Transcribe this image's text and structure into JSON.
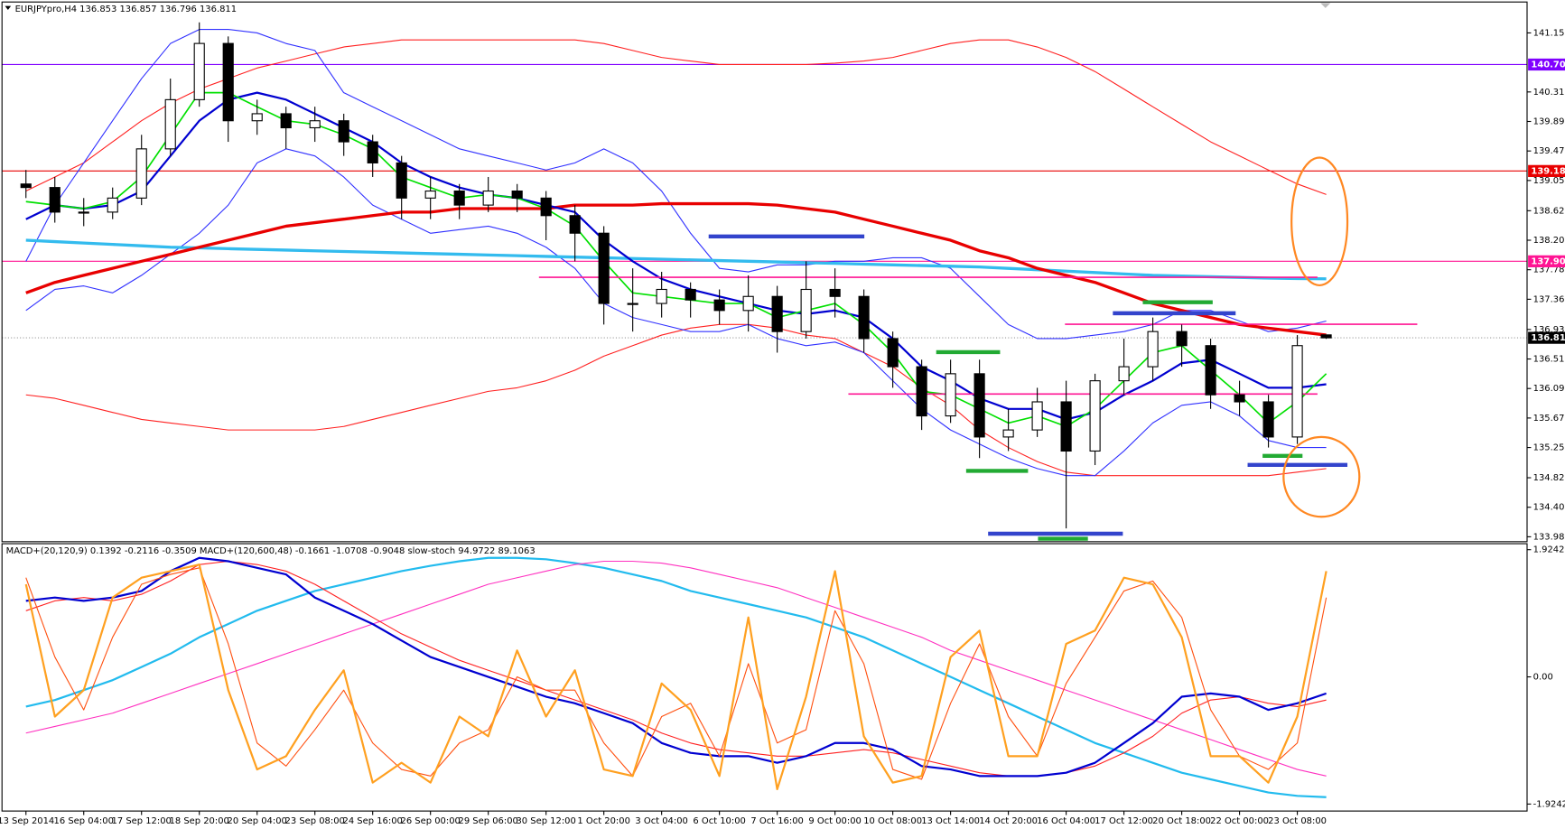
{
  "chart_data": [
    {
      "type": "candlestick",
      "title": "EURJPYpro,H4  136.853 136.857 136.796 136.811",
      "categories": [
        "13 Sep 2014",
        null,
        "16 Sep 04:00",
        null,
        "17 Sep 12:00",
        null,
        "18 Sep 20:00",
        null,
        "20 Sep 04:00",
        null,
        "23 Sep 08:00",
        null,
        "24 Sep 16:00",
        null,
        "26 Sep 00:00",
        null,
        "29 Sep 06:00",
        null,
        "30 Sep 12:00",
        null,
        "1 Oct 20:00",
        null,
        "3 Oct 04:00",
        null,
        "6 Oct 10:00",
        null,
        "7 Oct 16:00",
        null,
        "9 Oct 00:00",
        null,
        "10 Oct 08:00",
        null,
        "13 Oct 14:00",
        null,
        "14 Oct 20:00",
        null,
        "16 Oct 04:00",
        null,
        "17 Oct 12:00",
        null,
        "20 Oct 18:00",
        null,
        "22 Oct 00:00",
        null,
        "23 Oct 08:00",
        null
      ],
      "open": [
        139.0,
        138.95,
        138.6,
        138.6,
        138.8,
        139.5,
        140.2,
        141.0,
        139.9,
        140.0,
        139.8,
        139.9,
        139.6,
        139.3,
        138.8,
        138.9,
        138.7,
        138.9,
        138.8,
        138.55,
        138.3,
        137.3,
        137.3,
        137.5,
        137.35,
        137.2,
        137.4,
        136.9,
        137.5,
        137.4,
        136.8,
        136.4,
        135.7,
        136.3,
        135.4,
        135.5,
        135.9,
        135.2,
        136.2,
        136.4,
        136.9,
        136.7,
        136.0,
        135.9,
        135.4,
        136.853
      ],
      "high": [
        139.2,
        139.1,
        138.8,
        138.95,
        139.7,
        140.5,
        141.3,
        141.1,
        140.2,
        140.1,
        140.1,
        140.0,
        139.7,
        139.4,
        139.1,
        139.0,
        139.1,
        139.0,
        138.9,
        138.7,
        138.4,
        137.8,
        137.75,
        137.6,
        137.5,
        137.7,
        137.55,
        137.9,
        137.8,
        137.5,
        136.9,
        136.5,
        136.5,
        136.5,
        135.8,
        136.1,
        136.2,
        136.3,
        136.8,
        137.1,
        137.0,
        136.8,
        136.2,
        136.0,
        136.85,
        136.857
      ],
      "low": [
        138.8,
        138.45,
        138.4,
        138.5,
        138.7,
        139.4,
        140.1,
        139.6,
        139.7,
        139.5,
        139.6,
        139.4,
        139.1,
        138.5,
        138.5,
        138.5,
        138.6,
        138.6,
        138.2,
        137.9,
        137.0,
        136.9,
        137.1,
        137.1,
        137.0,
        136.9,
        136.6,
        136.8,
        137.1,
        136.6,
        136.1,
        135.5,
        135.6,
        135.1,
        135.2,
        135.4,
        134.1,
        135.0,
        136.0,
        136.2,
        136.4,
        135.8,
        135.7,
        135.25,
        135.3,
        136.796
      ],
      "close": [
        138.95,
        138.6,
        138.6,
        138.8,
        139.5,
        140.2,
        141.0,
        139.9,
        140.0,
        139.8,
        139.9,
        139.6,
        139.3,
        138.8,
        138.9,
        138.7,
        138.9,
        138.8,
        138.55,
        138.3,
        137.3,
        137.3,
        137.5,
        137.35,
        137.2,
        137.4,
        136.9,
        137.5,
        137.4,
        136.8,
        136.4,
        135.7,
        136.3,
        135.4,
        135.5,
        135.9,
        135.2,
        136.2,
        136.4,
        136.9,
        136.7,
        136.0,
        135.9,
        135.4,
        136.7,
        136.811
      ],
      "series": [
        {
          "color": "#ff2020",
          "values": [
            138.9,
            139.1,
            139.3,
            139.6,
            139.9,
            140.15,
            140.35,
            140.5,
            140.65,
            140.75,
            140.85,
            140.95,
            141.0,
            141.05,
            141.05,
            141.05,
            141.05,
            141.05,
            141.05,
            141.05,
            141.0,
            140.9,
            140.8,
            140.75,
            140.7,
            140.7,
            140.7,
            140.7,
            140.72,
            140.75,
            140.8,
            140.9,
            141.0,
            141.05,
            141.05,
            140.95,
            140.8,
            140.6,
            140.35,
            140.1,
            139.85,
            139.6,
            139.4,
            139.2,
            139.0,
            138.85
          ]
        },
        {
          "color": "#ff2020",
          "values": [
            136.0,
            135.95,
            135.85,
            135.75,
            135.65,
            135.6,
            135.55,
            135.5,
            135.5,
            135.5,
            135.5,
            135.55,
            135.65,
            135.75,
            135.85,
            135.95,
            136.05,
            136.1,
            136.2,
            136.35,
            136.55,
            136.7,
            136.85,
            136.95,
            137.0,
            137.0,
            136.95,
            136.85,
            136.8,
            136.6,
            136.4,
            136.1,
            135.85,
            135.5,
            135.25,
            135.05,
            134.9,
            134.85,
            134.85,
            134.85,
            134.85,
            134.85,
            134.85,
            134.85,
            134.9,
            134.95
          ]
        },
        {
          "color": "#3030ff",
          "values": [
            137.9,
            138.7,
            139.3,
            139.9,
            140.5,
            141.0,
            141.2,
            141.2,
            141.15,
            141.0,
            140.9,
            140.3,
            140.1,
            139.9,
            139.7,
            139.5,
            139.4,
            139.3,
            139.2,
            139.3,
            139.5,
            139.3,
            138.9,
            138.3,
            137.8,
            137.75,
            137.85,
            137.85,
            137.9,
            137.9,
            137.95,
            137.95,
            137.8,
            137.4,
            137.0,
            136.8,
            136.8,
            136.85,
            136.9,
            137.0,
            137.2,
            137.2,
            137.05,
            136.9,
            136.95,
            137.05
          ]
        },
        {
          "color": "#3030ff",
          "values": [
            137.2,
            137.5,
            137.55,
            137.45,
            137.7,
            138.0,
            138.3,
            138.7,
            139.3,
            139.5,
            139.4,
            139.1,
            138.7,
            138.5,
            138.3,
            138.35,
            138.4,
            138.3,
            138.1,
            137.8,
            137.3,
            137.1,
            137.0,
            136.9,
            136.9,
            137.0,
            136.8,
            136.7,
            136.75,
            136.6,
            136.2,
            135.8,
            135.5,
            135.3,
            135.1,
            134.95,
            134.85,
            134.85,
            135.2,
            135.6,
            135.85,
            135.9,
            135.7,
            135.35,
            135.25,
            135.25
          ]
        },
        {
          "color": "#33bbee",
          "values": [
            138.2,
            138.18,
            138.16,
            138.14,
            138.12,
            138.1,
            138.09,
            138.08,
            138.07,
            138.06,
            138.05,
            138.04,
            138.03,
            138.02,
            138.01,
            138.0,
            137.99,
            137.98,
            137.97,
            137.96,
            137.95,
            137.94,
            137.93,
            137.92,
            137.91,
            137.9,
            137.89,
            137.88,
            137.87,
            137.86,
            137.85,
            137.84,
            137.83,
            137.82,
            137.8,
            137.78,
            137.76,
            137.74,
            137.72,
            137.7,
            137.69,
            137.68,
            137.67,
            137.66,
            137.655,
            137.65
          ]
        },
        {
          "color": "#e80000",
          "values": [
            137.45,
            137.6,
            137.7,
            137.8,
            137.9,
            138.0,
            138.1,
            138.2,
            138.3,
            138.4,
            138.45,
            138.5,
            138.55,
            138.6,
            138.6,
            138.65,
            138.65,
            138.65,
            138.65,
            138.7,
            138.7,
            138.7,
            138.72,
            138.72,
            138.72,
            138.72,
            138.7,
            138.65,
            138.6,
            138.5,
            138.4,
            138.3,
            138.2,
            138.05,
            137.95,
            137.8,
            137.7,
            137.6,
            137.45,
            137.3,
            137.2,
            137.1,
            137.0,
            136.95,
            136.9,
            136.85
          ]
        },
        {
          "color": "#0000d0",
          "values": [
            138.5,
            138.7,
            138.65,
            138.7,
            138.9,
            139.4,
            139.9,
            140.2,
            140.3,
            140.2,
            140.0,
            139.8,
            139.6,
            139.3,
            139.1,
            138.95,
            138.85,
            138.8,
            138.7,
            138.6,
            138.2,
            137.9,
            137.65,
            137.5,
            137.4,
            137.3,
            137.2,
            137.15,
            137.2,
            137.1,
            136.8,
            136.4,
            136.2,
            135.95,
            135.8,
            135.8,
            135.65,
            135.75,
            136.0,
            136.2,
            136.45,
            136.5,
            136.3,
            136.1,
            136.1,
            136.15
          ]
        },
        {
          "color": "#00e000",
          "values": [
            138.75,
            138.7,
            138.65,
            138.75,
            139.1,
            139.7,
            140.3,
            140.3,
            140.1,
            139.9,
            139.85,
            139.7,
            139.5,
            139.1,
            138.95,
            138.8,
            138.85,
            138.8,
            138.65,
            138.4,
            137.9,
            137.45,
            137.4,
            137.35,
            137.3,
            137.3,
            137.1,
            137.2,
            137.3,
            137.0,
            136.6,
            136.05,
            136.0,
            135.8,
            135.6,
            135.7,
            135.55,
            135.8,
            136.2,
            136.6,
            136.7,
            136.35,
            136.0,
            135.6,
            135.9,
            136.3
          ]
        }
      ],
      "hlines": [
        {
          "value": 140.7,
          "label": "140.700",
          "color": "#8000ff"
        },
        {
          "value": 139.185,
          "label": "139.185",
          "color": "#e80000"
        },
        {
          "value": 137.9,
          "label": "137.900",
          "color": "#ff1493"
        }
      ],
      "last": 136.811,
      "ylim": [
        133.91,
        141.59
      ],
      "yticks": [
        {
          "value": 141.15,
          "label": "141.150"
        },
        {
          "value": 140.31,
          "label": "140.310"
        },
        {
          "value": 139.89,
          "label": "139.890"
        },
        {
          "value": 139.47,
          "label": "139.470"
        },
        {
          "value": 139.05,
          "label": "139.050"
        },
        {
          "value": 138.62,
          "label": "138.620"
        },
        {
          "value": 138.2,
          "label": "138.200"
        },
        {
          "value": 137.78,
          "label": "137.780"
        },
        {
          "value": 137.36,
          "label": "137.360"
        },
        {
          "value": 136.93,
          "label": "136.930"
        },
        {
          "value": 136.51,
          "label": "136.510"
        },
        {
          "value": 136.09,
          "label": "136.090"
        },
        {
          "value": 135.67,
          "label": "135.670"
        },
        {
          "value": 135.25,
          "label": "135.250"
        },
        {
          "value": 134.82,
          "label": "134.820"
        },
        {
          "value": 134.4,
          "label": "134.400"
        },
        {
          "value": 133.98,
          "label": "133.980"
        }
      ]
    },
    {
      "type": "line",
      "title": "MACD+(20,120,9) 0.1392 -0.2116 -0.3509  MACD+(120,600,48) -0.1661 -1.0708 -0.9048  slow-stoch 94.9722 89.1063",
      "series": [
        {
          "color": "#22bbee",
          "values": [
            -0.45,
            -0.35,
            -0.2,
            -0.05,
            0.15,
            0.35,
            0.6,
            0.8,
            1.0,
            1.15,
            1.3,
            1.4,
            1.5,
            1.6,
            1.68,
            1.75,
            1.8,
            1.8,
            1.78,
            1.72,
            1.65,
            1.55,
            1.45,
            1.3,
            1.2,
            1.1,
            1.0,
            0.9,
            0.75,
            0.6,
            0.4,
            0.2,
            0.0,
            -0.2,
            -0.4,
            -0.6,
            -0.8,
            -1.0,
            -1.15,
            -1.3,
            -1.45,
            -1.55,
            -1.65,
            -1.75,
            -1.8,
            -1.82
          ]
        },
        {
          "color": "#ff30c0",
          "values": [
            -0.85,
            -0.75,
            -0.65,
            -0.55,
            -0.4,
            -0.25,
            -0.1,
            0.05,
            0.2,
            0.35,
            0.5,
            0.65,
            0.8,
            0.95,
            1.1,
            1.25,
            1.4,
            1.5,
            1.6,
            1.7,
            1.75,
            1.75,
            1.72,
            1.65,
            1.55,
            1.45,
            1.35,
            1.2,
            1.05,
            0.9,
            0.75,
            0.6,
            0.4,
            0.25,
            0.1,
            -0.05,
            -0.2,
            -0.35,
            -0.5,
            -0.65,
            -0.8,
            -0.95,
            -1.1,
            -1.25,
            -1.4,
            -1.5
          ]
        },
        {
          "color": "#ff2020",
          "values": [
            1.0,
            1.15,
            1.2,
            1.15,
            1.25,
            1.45,
            1.7,
            1.75,
            1.7,
            1.6,
            1.4,
            1.15,
            0.9,
            0.65,
            0.45,
            0.25,
            0.1,
            -0.05,
            -0.2,
            -0.35,
            -0.5,
            -0.65,
            -0.85,
            -1.0,
            -1.1,
            -1.15,
            -1.2,
            -1.2,
            -1.15,
            -1.1,
            -1.15,
            -1.25,
            -1.35,
            -1.45,
            -1.5,
            -1.5,
            -1.45,
            -1.35,
            -1.15,
            -0.9,
            -0.55,
            -0.35,
            -0.3,
            -0.4,
            -0.45,
            -0.35
          ]
        },
        {
          "color": "#0000d0",
          "values": [
            1.15,
            1.2,
            1.15,
            1.2,
            1.3,
            1.6,
            1.8,
            1.75,
            1.65,
            1.55,
            1.2,
            1.0,
            0.8,
            0.55,
            0.3,
            0.15,
            0.0,
            -0.15,
            -0.3,
            -0.4,
            -0.55,
            -0.7,
            -1.0,
            -1.15,
            -1.2,
            -1.2,
            -1.3,
            -1.2,
            -1.0,
            -1.0,
            -1.1,
            -1.35,
            -1.4,
            -1.5,
            -1.5,
            -1.5,
            -1.45,
            -1.3,
            -1.0,
            -0.7,
            -0.3,
            -0.25,
            -0.3,
            -0.5,
            -0.4,
            -0.25
          ]
        },
        {
          "color": "#ff5010",
          "values": [
            1.5,
            0.3,
            -0.5,
            0.6,
            1.4,
            1.55,
            1.65,
            0.5,
            -1.0,
            -1.35,
            -0.8,
            -0.2,
            -1.0,
            -1.4,
            -1.5,
            -1.0,
            -0.8,
            0.0,
            -0.2,
            -0.2,
            -1.0,
            -1.5,
            -0.6,
            -0.4,
            -1.2,
            0.2,
            -1.0,
            -0.8,
            1.0,
            0.2,
            -1.4,
            -1.55,
            -0.4,
            0.5,
            -0.6,
            -1.2,
            -0.1,
            0.6,
            1.3,
            1.45,
            0.9,
            -0.5,
            -1.2,
            -1.4,
            -1.0,
            1.2
          ]
        },
        {
          "color": "#ffa020",
          "values": [
            1.4,
            -0.6,
            -0.2,
            1.2,
            1.5,
            1.6,
            1.7,
            -0.2,
            -1.4,
            -1.2,
            -0.5,
            0.1,
            -1.6,
            -1.3,
            -1.6,
            -0.6,
            -0.9,
            0.4,
            -0.6,
            0.1,
            -1.4,
            -1.5,
            -0.1,
            -0.5,
            -1.5,
            0.9,
            -1.7,
            -0.3,
            1.6,
            -0.9,
            -1.6,
            -1.5,
            0.3,
            0.7,
            -1.2,
            -1.2,
            0.5,
            0.7,
            1.5,
            1.4,
            0.6,
            -1.2,
            -1.2,
            -1.6,
            -0.6,
            1.6
          ]
        }
      ],
      "ylim": [
        -2.03,
        2.015
      ],
      "yticks": [
        1.9242,
        {
          "value": 0,
          "label": "0.00"
        },
        -1.9242
      ]
    }
  ]
}
